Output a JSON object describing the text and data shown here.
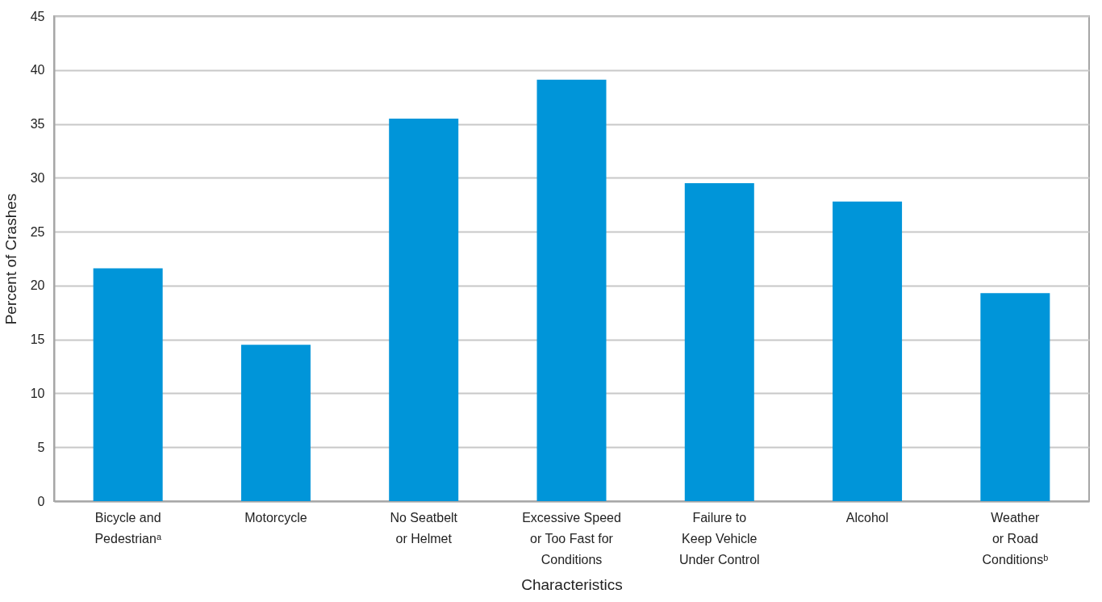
{
  "chart_data": {
    "type": "bar",
    "xlabel": "Characteristics",
    "ylabel": "Percent of Crashes",
    "categories": [
      "Bicycle and\nPedestrianᵃ",
      "Motorcycle",
      "No Seatbelt\nor Helmet",
      "Excessive Speed\nor Too Fast for\nConditions",
      "Failure to\nKeep Vehicle\nUnder Control",
      "Alcohol",
      "Weather\nor Road\nConditionsᵇ"
    ],
    "values": [
      21.6,
      14.5,
      35.5,
      39.1,
      29.5,
      27.8,
      19.3
    ],
    "color": "#0095d9",
    "ylim": [
      0,
      45
    ],
    "yticks": [
      0,
      5,
      10,
      15,
      20,
      25,
      30,
      35,
      40,
      45
    ],
    "grid": "y"
  }
}
